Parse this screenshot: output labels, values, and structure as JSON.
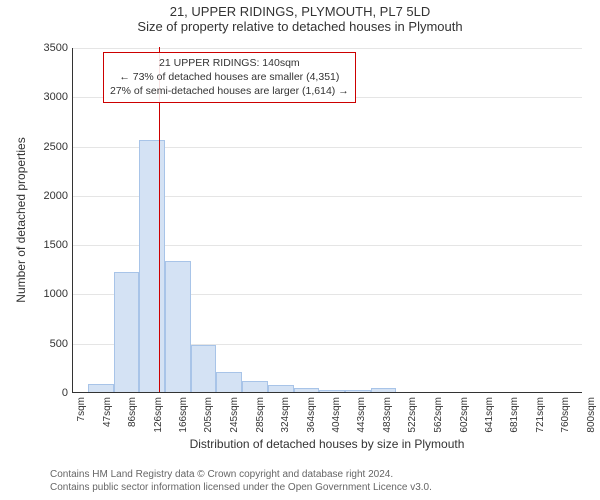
{
  "header": {
    "title": "21, UPPER RIDINGS, PLYMOUTH, PL7 5LD",
    "subtitle": "Size of property relative to detached houses in Plymouth"
  },
  "chart": {
    "type": "histogram",
    "ylabel": "Number of detached properties",
    "xlabel": "Distribution of detached houses by size in Plymouth",
    "ylim": [
      0,
      3500
    ],
    "ytick_step": 500,
    "bar_fill": "#d4e2f4",
    "bar_stroke": "#a8c4e8",
    "grid_color": "#e5e5e5",
    "axis_color": "#333333",
    "vline_color": "#cc0000",
    "vline_x": 140,
    "xticks": [
      "7sqm",
      "47sqm",
      "86sqm",
      "126sqm",
      "166sqm",
      "205sqm",
      "245sqm",
      "285sqm",
      "324sqm",
      "364sqm",
      "404sqm",
      "443sqm",
      "483sqm",
      "522sqm",
      "562sqm",
      "602sqm",
      "641sqm",
      "681sqm",
      "721sqm",
      "760sqm",
      "800sqm"
    ],
    "xtick_values": [
      7,
      47,
      86,
      126,
      166,
      205,
      245,
      285,
      324,
      364,
      404,
      443,
      483,
      522,
      562,
      602,
      641,
      681,
      721,
      760,
      800
    ],
    "bars": [
      {
        "x": 30,
        "w": 40,
        "v": 80
      },
      {
        "x": 70,
        "w": 40,
        "v": 1220
      },
      {
        "x": 110,
        "w": 40,
        "v": 2560
      },
      {
        "x": 150,
        "w": 40,
        "v": 1330
      },
      {
        "x": 190,
        "w": 40,
        "v": 480
      },
      {
        "x": 230,
        "w": 40,
        "v": 200
      },
      {
        "x": 270,
        "w": 40,
        "v": 110
      },
      {
        "x": 310,
        "w": 40,
        "v": 70
      },
      {
        "x": 350,
        "w": 40,
        "v": 40
      },
      {
        "x": 390,
        "w": 40,
        "v": 20
      },
      {
        "x": 430,
        "w": 40,
        "v": 20
      },
      {
        "x": 470,
        "w": 40,
        "v": 40
      }
    ],
    "xrange": [
      7,
      800
    ]
  },
  "annotation": {
    "line1": "21 UPPER RIDINGS: 140sqm",
    "line2": "← 73% of detached houses are smaller (4,351)",
    "line3": "27% of semi-detached houses are larger (1,614) →"
  },
  "footer": {
    "line1": "Contains HM Land Registry data © Crown copyright and database right 2024.",
    "line2": "Contains public sector information licensed under the Open Government Licence v3.0."
  }
}
